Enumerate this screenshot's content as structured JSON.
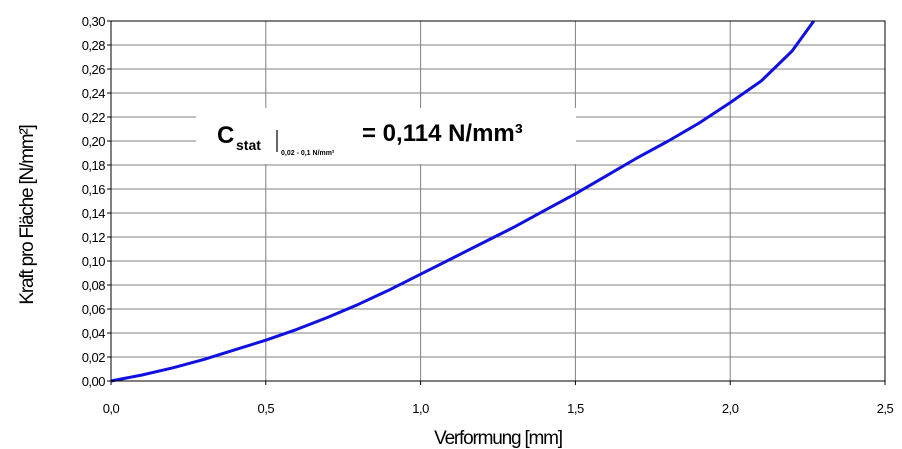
{
  "chart_data": {
    "type": "line",
    "xlabel": "Verformung [mm]",
    "ylabel": "Kraft pro Fläche [N/mm²]",
    "xlim": [
      0,
      2.5
    ],
    "ylim": [
      0,
      0.3
    ],
    "x_ticks": [
      "0,0",
      "0,5",
      "1,0",
      "1,5",
      "2,0",
      "2,5"
    ],
    "y_ticks": [
      "0,00",
      "0,02",
      "0,04",
      "0,06",
      "0,08",
      "0,10",
      "0,12",
      "0,14",
      "0,16",
      "0,18",
      "0,20",
      "0,22",
      "0,24",
      "0,26",
      "0,28",
      "0,30"
    ],
    "grid": true,
    "line_color": "#1010e0",
    "series": [
      {
        "x": [
          0,
          0.1,
          0.2,
          0.3,
          0.4,
          0.5,
          0.6,
          0.7,
          0.8,
          0.9,
          1.0,
          1.1,
          1.2,
          1.3,
          1.4,
          1.5,
          1.6,
          1.7,
          1.8,
          1.9,
          2.0,
          2.1,
          2.2,
          2.27
        ],
        "y": [
          0.0,
          0.005,
          0.011,
          0.018,
          0.026,
          0.034,
          0.043,
          0.053,
          0.064,
          0.076,
          0.089,
          0.102,
          0.115,
          0.128,
          0.142,
          0.156,
          0.171,
          0.186,
          0.2,
          0.215,
          0.232,
          0.25,
          0.275,
          0.3
        ]
      }
    ],
    "annotation": {
      "symbol": "C",
      "subscript": "stat",
      "range": "0,02 - 0,1 N/mm²",
      "value": "= 0,114 N/mm³"
    }
  }
}
